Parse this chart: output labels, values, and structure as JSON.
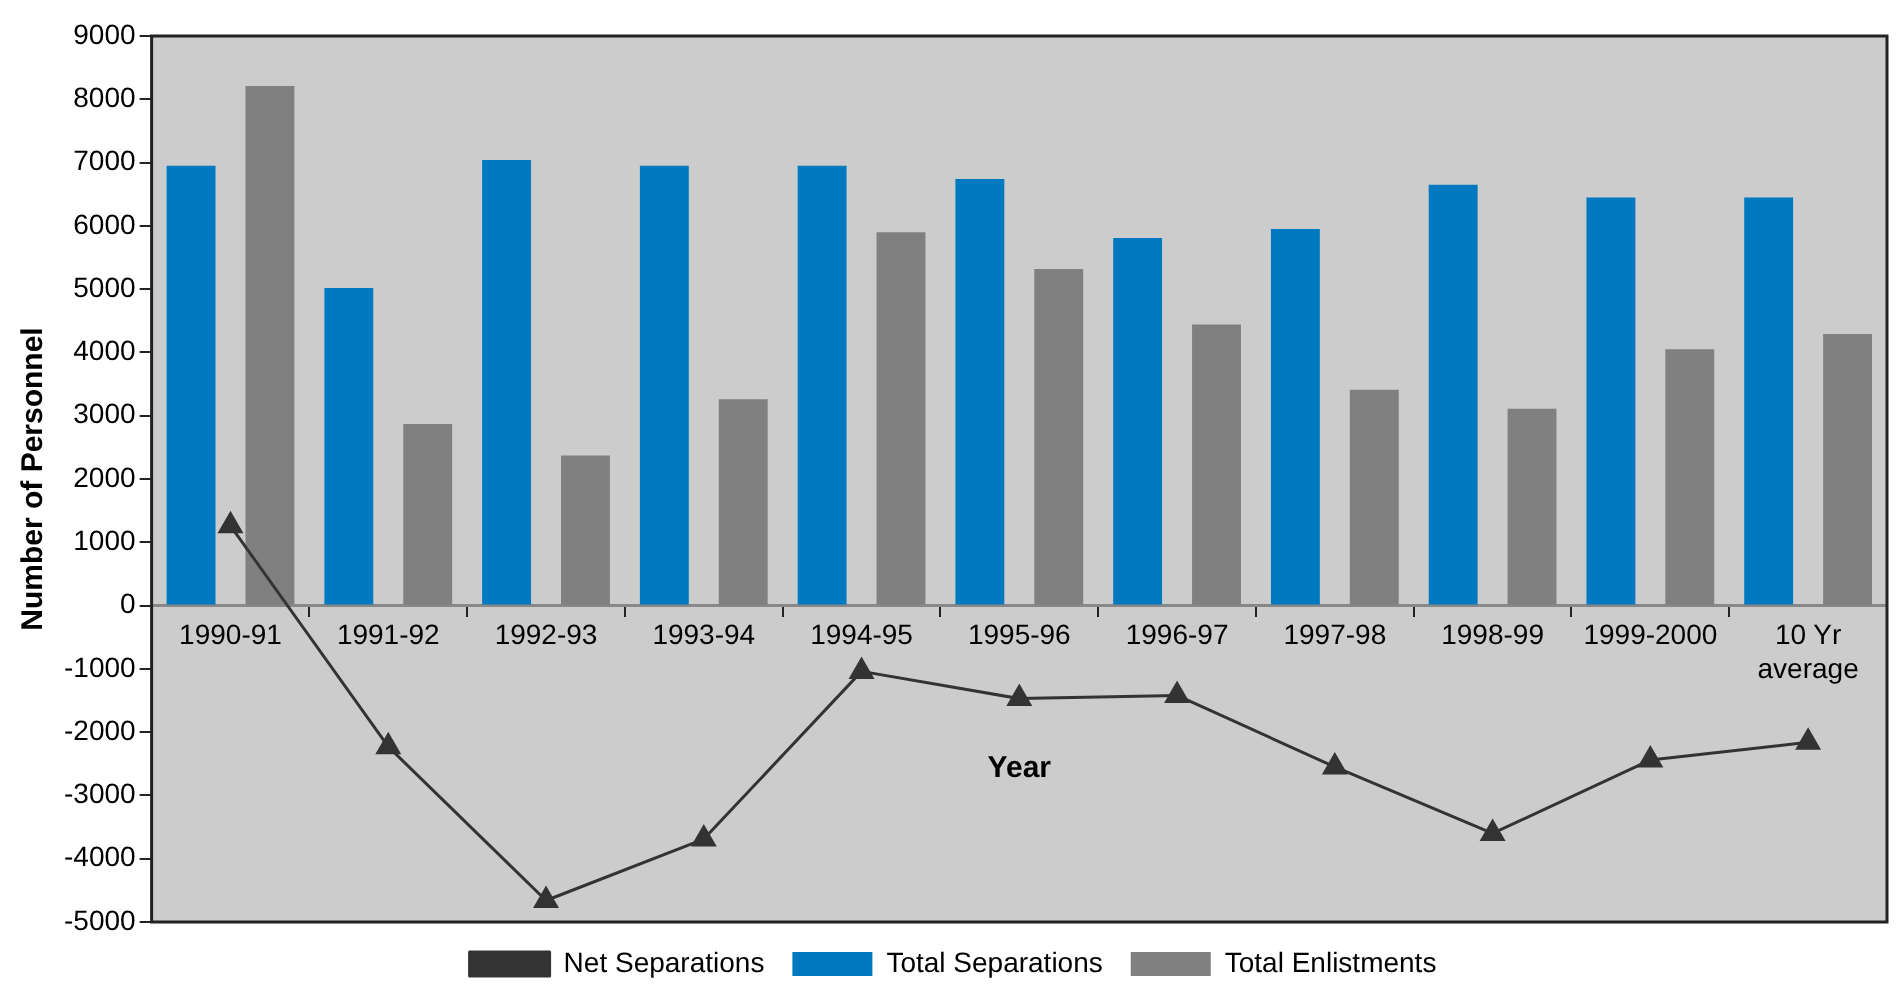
{
  "chart_data": {
    "type": "bar",
    "xlabel": "Year",
    "ylabel": "Number of Personnel",
    "categories": [
      "1990-91",
      "1991-92",
      "1992-93",
      "1993-94",
      "1994-95",
      "1995-96",
      "1996-97",
      "1997-98",
      "1998-99",
      "1999-2000",
      "10 Yr average"
    ],
    "series": [
      {
        "name": "Total Separations",
        "color": "#0079c1",
        "values": [
          6950,
          5020,
          7040,
          6950,
          6950,
          6740,
          5810,
          5950,
          6650,
          6450,
          6450
        ]
      },
      {
        "name": "Total Enlistments",
        "color": "#808080",
        "values": [
          8210,
          2870,
          2370,
          3260,
          5900,
          5320,
          4440,
          3410,
          3110,
          4050,
          4290
        ]
      },
      {
        "name": "Net Separations",
        "type": "line",
        "color": "#333333",
        "marker": "triangle",
        "values": [
          1260,
          -2230,
          -4660,
          -3690,
          -1040,
          -1470,
          -1420,
          -2550,
          -3600,
          -2440,
          -2160
        ]
      }
    ],
    "ylim": [
      -5000,
      9000
    ],
    "yticks": [
      -5000,
      -4000,
      -3000,
      -2000,
      -1000,
      0,
      1000,
      2000,
      3000,
      4000,
      5000,
      6000,
      7000,
      8000,
      9000
    ],
    "grid": false,
    "legend": "bottom"
  }
}
